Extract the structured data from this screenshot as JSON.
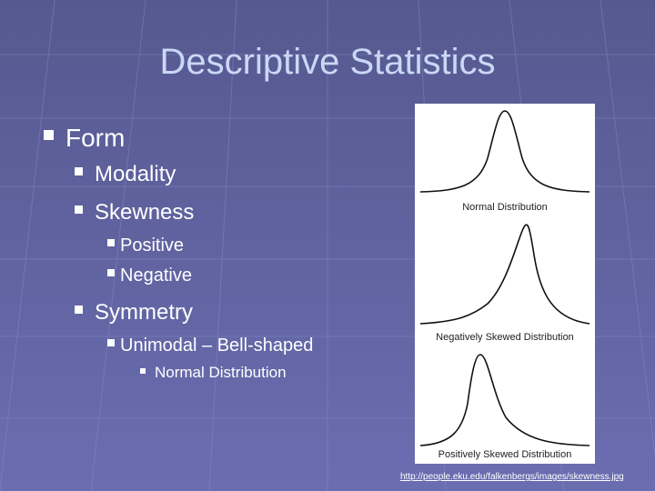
{
  "slide": {
    "title": "Descriptive Statistics",
    "bullets": [
      {
        "text": "Form",
        "children": [
          {
            "text": "Modality"
          },
          {
            "text": "Skewness",
            "children": [
              {
                "text": "Positive"
              },
              {
                "text": "Negative"
              }
            ]
          },
          {
            "text": "Symmetry",
            "children": [
              {
                "text": "Unimodal – Bell-shaped",
                "children": [
                  {
                    "text": "Normal Distribution"
                  }
                ]
              }
            ]
          }
        ]
      }
    ],
    "figure": {
      "panels": [
        {
          "caption": "Normal Distribution"
        },
        {
          "caption": "Negatively Skewed Distribution"
        },
        {
          "caption": "Positively Skewed Distribution"
        }
      ]
    },
    "source_link": "http://people.eku.edu/falkenbergs/images/skewness.jpg"
  }
}
